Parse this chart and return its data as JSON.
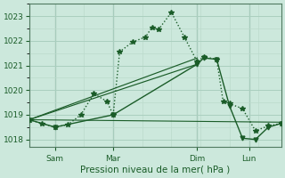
{
  "xlabel": "Pression niveau de la mer( hPa )",
  "bg_color": "#cce8dc",
  "plot_bg_color": "#cce8dc",
  "grid_major_color": "#aacfbf",
  "grid_minor_color": "#bbdacc",
  "line_color": "#1a5c28",
  "ylim": [
    1017.7,
    1023.5
  ],
  "yticks": [
    1018,
    1019,
    1020,
    1021,
    1022,
    1023
  ],
  "xtick_labels": [
    "Sam",
    "Mar",
    "Dim",
    "Lun"
  ],
  "xtick_positions": [
    8,
    26,
    52,
    68
  ],
  "xlim": [
    0,
    78
  ],
  "series_dotted_x": [
    0,
    4,
    8,
    12,
    16,
    20,
    24,
    26,
    28,
    32,
    36,
    38,
    40,
    44,
    48,
    52,
    54,
    58,
    60,
    62,
    66,
    70,
    74,
    78
  ],
  "series_dotted_y": [
    1018.8,
    1018.65,
    1018.5,
    1018.6,
    1019.0,
    1019.85,
    1019.55,
    1019.0,
    1021.55,
    1021.95,
    1022.15,
    1022.55,
    1022.45,
    1023.15,
    1022.15,
    1021.15,
    1021.35,
    1021.25,
    1019.55,
    1019.45,
    1019.25,
    1018.35,
    1018.55,
    1018.65
  ],
  "series_solid_x": [
    0,
    8,
    26,
    52,
    54,
    58,
    62,
    66,
    70,
    74,
    78
  ],
  "series_solid_y": [
    1018.8,
    1018.5,
    1019.0,
    1021.05,
    1021.3,
    1021.25,
    1019.35,
    1018.05,
    1018.0,
    1018.5,
    1018.65
  ],
  "fan_lines": [
    {
      "x": [
        0,
        52
      ],
      "y": [
        1018.8,
        1021.05
      ]
    },
    {
      "x": [
        0,
        52
      ],
      "y": [
        1018.8,
        1021.3
      ]
    }
  ],
  "flat_line_x": [
    0,
    78
  ],
  "flat_line_y": [
    1018.8,
    1018.7
  ]
}
